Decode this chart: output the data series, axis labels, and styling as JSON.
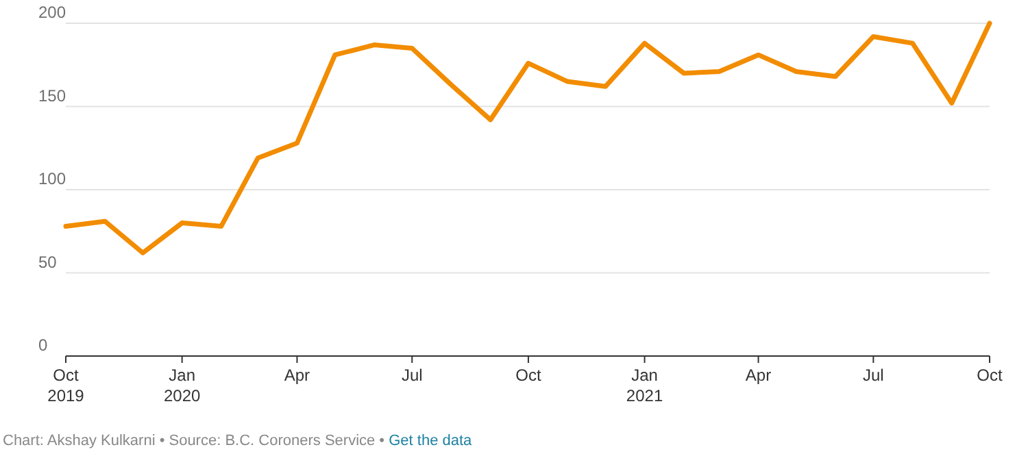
{
  "chart_data": {
    "type": "line",
    "x": [
      "2019-10",
      "2019-11",
      "2019-12",
      "2020-01",
      "2020-02",
      "2020-03",
      "2020-04",
      "2020-05",
      "2020-06",
      "2020-07",
      "2020-08",
      "2020-09",
      "2020-10",
      "2020-11",
      "2020-12",
      "2021-01",
      "2021-02",
      "2021-03",
      "2021-04",
      "2021-05",
      "2021-06",
      "2021-07",
      "2021-08",
      "2021-09",
      "2021-10"
    ],
    "series": [
      {
        "color": "#f28c00",
        "values": [
          78,
          81,
          62,
          80,
          78,
          119,
          128,
          181,
          187,
          185,
          163,
          142,
          176,
          165,
          162,
          188,
          170,
          171,
          181,
          171,
          168,
          192,
          188,
          152,
          200
        ]
      }
    ],
    "xlim": [
      "2019-10",
      "2021-10"
    ],
    "xticks": [
      {
        "value": "2019-10",
        "label": "Oct\n2019"
      },
      {
        "value": "2020-01",
        "label": "Jan\n2020"
      },
      {
        "value": "2020-04",
        "label": "Apr"
      },
      {
        "value": "2020-07",
        "label": "Jul"
      },
      {
        "value": "2020-10",
        "label": "Oct"
      },
      {
        "value": "2021-01",
        "label": "Jan\n2021"
      },
      {
        "value": "2021-04",
        "label": "Apr"
      },
      {
        "value": "2021-07",
        "label": "Jul"
      },
      {
        "value": "2021-10",
        "label": "Oct"
      }
    ],
    "ylim": [
      0,
      200
    ],
    "yticks": [
      0,
      50,
      100,
      150,
      200
    ],
    "grid": "y",
    "line_style": "solid",
    "marker": "none",
    "annotations": [
      "Chart: Akshay Kulkarni • Source: B.C. Coroners Service •",
      "Get the data"
    ]
  }
}
